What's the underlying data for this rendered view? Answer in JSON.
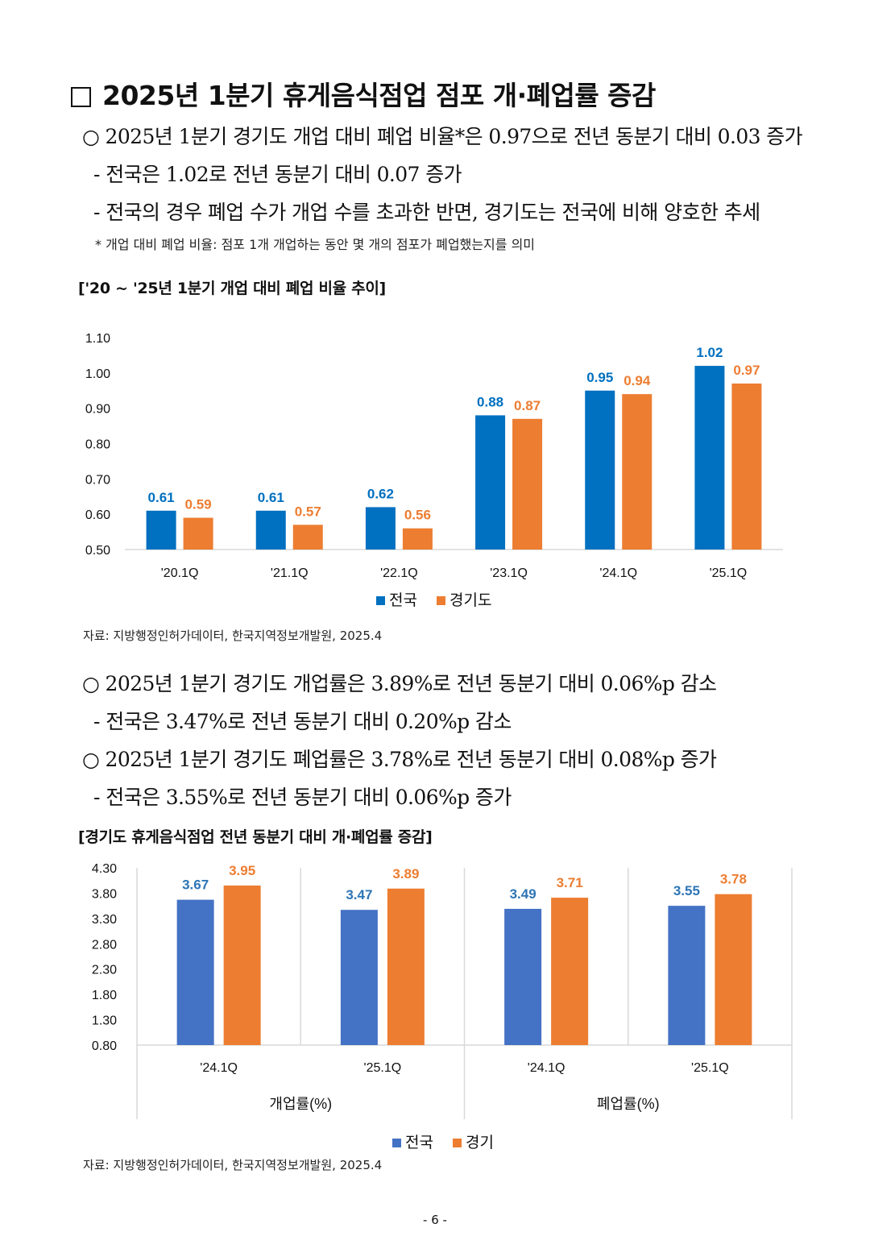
{
  "section_title": "2025년 1분기 휴게음식점업 점포 개·폐업률 증감",
  "para1": {
    "bullet": "○ 2025년 1분기 경기도 개업 대비 폐업 비율*은 0.97으로 전년 동분기 대비 0.03 증가",
    "sub1": "- 전국은  1.02로 전년 동분기 대비 0.07 증가",
    "sub2": "- 전국의 경우 폐업 수가 개업 수를 초과한 반면, 경기도는 전국에 비해 양호한 추세",
    "footnote": "* 개업 대비 폐업 비율: 점포 1개 개업하는 동안 몇 개의 점포가 폐업했는지를 의미"
  },
  "chart1_title": "['20 ~ '25년 1분기 개업 대비 폐업 비율 추이]",
  "source1": "자료: 지방행정인허가데이터, 한국지역정보개발원, 2025.4",
  "para2": {
    "bullet1": "○ 2025년 1분기 경기도 개업률은 3.89%로 전년 동분기 대비 0.06%p 감소",
    "sub1": "- 전국은  3.47%로 전년 동분기 대비 0.20%p  감소",
    "bullet2": "○ 2025년 1분기 경기도 폐업률은 3.78%로 전년 동분기 대비 0.08%p 증가",
    "sub2": "- 전국은  3.55%로 전년 동분기 대비 0.06%p  증가"
  },
  "chart2_title": "[경기도 휴게음식점업 전년 동분기 대비 개·폐업률 증감]",
  "source2": "자료: 지방행정인허가데이터, 한국지역정보개발원, 2025.4",
  "page_number": "- 6 -",
  "colors": {
    "chart1_nation": "#0070C0",
    "chart1_gyeonggi": "#ED7D31",
    "chart2_nation": "#4472C4",
    "chart2_gyeonggi": "#ED7D31"
  },
  "chart_data": [
    {
      "type": "bar",
      "categories": [
        "'20.1Q",
        "'21.1Q",
        "'22.1Q",
        "'23.1Q",
        "'24.1Q",
        "'25.1Q"
      ],
      "series": [
        {
          "name": "전국",
          "values": [
            0.61,
            0.61,
            0.62,
            0.88,
            0.95,
            1.02
          ]
        },
        {
          "name": "경기도",
          "values": [
            0.59,
            0.57,
            0.56,
            0.87,
            0.94,
            0.97
          ]
        }
      ],
      "value_labels": {
        "전국": [
          "0.61",
          "0.61",
          "0.62",
          "0.88",
          "0.95",
          "1.02"
        ],
        "경기도": [
          "0.59",
          "0.57",
          "0.56",
          "0.87",
          "0.94",
          "0.97"
        ]
      },
      "yticks": [
        "0.50",
        "0.60",
        "0.70",
        "0.80",
        "0.90",
        "1.00",
        "1.10"
      ],
      "ylim": [
        0.5,
        1.1
      ],
      "legend": [
        "전국",
        "경기도"
      ],
      "legend_position": "bottom",
      "grid": false
    },
    {
      "type": "bar",
      "categories": [
        "'24.1Q",
        "'25.1Q",
        "'24.1Q",
        "'25.1Q"
      ],
      "groups": [
        "개업률(%)",
        "폐업률(%)"
      ],
      "series": [
        {
          "name": "전국",
          "values": [
            3.67,
            3.47,
            3.49,
            3.55
          ]
        },
        {
          "name": "경기",
          "values": [
            3.95,
            3.89,
            3.71,
            3.78
          ]
        }
      ],
      "value_labels": {
        "전국": [
          "3.67",
          "3.47",
          "3.49",
          "3.55"
        ],
        "경기": [
          "3.95",
          "3.89",
          "3.71",
          "3.78"
        ]
      },
      "yticks": [
        "0.80",
        "1.30",
        "1.80",
        "2.30",
        "2.80",
        "3.30",
        "3.80",
        "4.30"
      ],
      "ylim": [
        0.8,
        4.3
      ],
      "legend": [
        "전국",
        "경기"
      ],
      "legend_position": "bottom",
      "grid": false
    }
  ]
}
